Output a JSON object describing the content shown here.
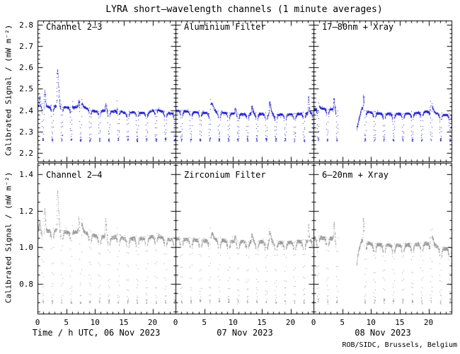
{
  "title": "LYRA short–wavelength channels (1 minute averages)",
  "credit": "ROB/SIDC, Brussels, Belgium",
  "chart_data": {
    "type": "scatter",
    "title": "LYRA short–wavelength channels (1 minute averages)",
    "credit": "ROB/SIDC, Brussels, Belgium",
    "grid": false,
    "orbit_period_h": 1.6389,
    "x_axis": {
      "hours_per_panel": 24,
      "tick_hours": [
        0,
        5,
        10,
        15,
        20
      ],
      "tick_labels": [
        "0",
        "5",
        "10",
        "15",
        "20"
      ],
      "minor_step_h": 1,
      "date_axis_labels": [
        "Time / h UTC, 06 Nov 2023",
        "07 Nov 2023",
        "08 Nov 2023"
      ],
      "dates": [
        "06 Nov 2023",
        "07 Nov 2023",
        "08 Nov 2023"
      ]
    },
    "rows": [
      {
        "ylabel": "Calibrated Signal / (mW m⁻²)",
        "color": "#2222cc",
        "ylim": [
          2.16,
          2.82
        ],
        "yticks": [
          2.2,
          2.3,
          2.4,
          2.5,
          2.6,
          2.7,
          2.8
        ],
        "ytick_labels": [
          "2.2",
          "2.3",
          "2.4",
          "2.5",
          "2.6",
          "2.7",
          "2.8"
        ],
        "y_minor_step": 0.02,
        "band_noise": 0.0045,
        "dip": {
          "floor": 2.256,
          "notch": 0.02,
          "dwell": 0.012,
          "scatter": 0.009
        },
        "panels": [
          {
            "label": "Channel 2–3",
            "dip_phase": 0.9,
            "gaps": [],
            "baseline": [
              [
                0,
                2.42
              ],
              [
                1,
                2.425
              ],
              [
                2,
                2.415
              ],
              [
                3,
                2.42
              ],
              [
                4,
                2.42
              ],
              [
                5,
                2.415
              ],
              [
                6,
                2.41
              ],
              [
                7,
                2.42
              ],
              [
                8,
                2.415
              ],
              [
                9,
                2.405
              ],
              [
                10,
                2.395
              ],
              [
                11,
                2.4
              ],
              [
                12,
                2.4
              ],
              [
                13,
                2.395
              ],
              [
                14,
                2.4
              ],
              [
                15,
                2.39
              ],
              [
                16,
                2.39
              ],
              [
                17,
                2.392
              ],
              [
                18,
                2.388
              ],
              [
                19,
                2.39
              ],
              [
                20,
                2.4
              ],
              [
                21,
                2.4
              ],
              [
                22,
                2.392
              ],
              [
                23,
                2.387
              ],
              [
                24,
                2.385
              ]
            ],
            "spikes": [
              [
                0.35,
                2.465,
                0.08
              ],
              [
                1.2,
                2.5,
                0.12
              ],
              [
                3.4,
                2.59,
                0.2
              ],
              [
                5.8,
                2.465,
                0.18
              ],
              [
                7.15,
                2.455,
                0.1
              ],
              [
                7.6,
                2.45,
                0.18
              ],
              [
                9.0,
                2.42,
                0.1
              ],
              [
                11.8,
                2.43,
                0.12
              ],
              [
                13.9,
                2.462,
                0.1
              ],
              [
                20.6,
                2.415,
                0.25
              ]
            ]
          },
          {
            "label": "Aluminium Filter",
            "dip_phase": 1.0,
            "gaps": [],
            "baseline": [
              [
                0,
                2.4
              ],
              [
                2,
                2.395
              ],
              [
                4,
                2.39
              ],
              [
                6,
                2.388
              ],
              [
                8,
                2.39
              ],
              [
                10,
                2.385
              ],
              [
                12,
                2.383
              ],
              [
                14,
                2.385
              ],
              [
                16,
                2.382
              ],
              [
                18,
                2.38
              ],
              [
                20,
                2.382
              ],
              [
                22,
                2.385
              ],
              [
                24,
                2.39
              ]
            ],
            "spikes": [
              [
                5.9,
                2.452,
                0.5
              ],
              [
                10.3,
                2.41,
                0.15
              ],
              [
                13.2,
                2.42,
                0.18
              ],
              [
                16.3,
                2.44,
                0.22
              ],
              [
                23.1,
                2.465,
                0.09
              ]
            ]
          },
          {
            "label": "17–80nm + Xray",
            "dip_phase": 0.75,
            "gaps": [
              [
                4.2,
                7.4
              ]
            ],
            "baseline": [
              [
                0,
                2.405
              ],
              [
                1,
                2.41
              ],
              [
                2,
                2.408
              ],
              [
                3,
                2.405
              ],
              [
                4.2,
                2.405
              ],
              [
                7.4,
                2.325
              ],
              [
                7.9,
                2.36
              ],
              [
                8.3,
                2.41
              ],
              [
                9,
                2.4
              ],
              [
                10,
                2.39
              ],
              [
                12,
                2.385
              ],
              [
                14,
                2.383
              ],
              [
                16,
                2.385
              ],
              [
                18,
                2.388
              ],
              [
                19.5,
                2.395
              ],
              [
                21,
                2.388
              ],
              [
                22,
                2.382
              ],
              [
                23,
                2.378
              ],
              [
                24,
                2.378
              ]
            ],
            "spikes": [
              [
                0.9,
                2.437,
                0.15
              ],
              [
                3.5,
                2.452,
                0.12
              ],
              [
                8.65,
                2.477,
                0.15
              ],
              [
                20.3,
                2.465,
                0.3
              ]
            ]
          }
        ]
      },
      {
        "ylabel": "Calibrated Signal / (mW m⁻²)",
        "color": "#9b9b9b",
        "ylim": [
          0.64,
          1.46
        ],
        "yticks": [
          0.8,
          1.0,
          1.2,
          1.4
        ],
        "ytick_labels": [
          "0.8",
          "1.0",
          "1.2",
          "1.4"
        ],
        "y_minor_step": 0.05,
        "band_noise": 0.009,
        "dip": {
          "floor": 0.697,
          "notch": 0.04,
          "dwell": 0.02,
          "scatter": 0.016
        },
        "panels": [
          {
            "label": "Channel 2–4",
            "dip_phase": 0.9,
            "gaps": [],
            "baseline": [
              [
                0,
                1.1
              ],
              [
                1,
                1.095
              ],
              [
                2,
                1.09
              ],
              [
                3,
                1.095
              ],
              [
                4,
                1.09
              ],
              [
                5,
                1.085
              ],
              [
                6,
                1.08
              ],
              [
                7,
                1.09
              ],
              [
                8,
                1.085
              ],
              [
                9,
                1.075
              ],
              [
                10,
                1.065
              ],
              [
                11,
                1.06
              ],
              [
                12,
                1.06
              ],
              [
                13,
                1.055
              ],
              [
                14,
                1.06
              ],
              [
                15,
                1.05
              ],
              [
                16,
                1.048
              ],
              [
                17,
                1.052
              ],
              [
                18,
                1.05
              ],
              [
                19,
                1.055
              ],
              [
                20,
                1.06
              ],
              [
                21,
                1.06
              ],
              [
                22,
                1.052
              ],
              [
                23,
                1.045
              ],
              [
                24,
                1.042
              ]
            ],
            "spikes": [
              [
                0.35,
                1.14,
                0.08
              ],
              [
                1.2,
                1.225,
                0.12
              ],
              [
                3.4,
                1.305,
                0.2
              ],
              [
                5.8,
                1.155,
                0.18
              ],
              [
                7.15,
                1.175,
                0.1
              ],
              [
                7.6,
                1.165,
                0.18
              ],
              [
                9.0,
                1.1,
                0.1
              ],
              [
                11.8,
                1.15,
                0.12
              ],
              [
                13.9,
                1.165,
                0.1
              ],
              [
                20.6,
                1.08,
                0.25
              ]
            ]
          },
          {
            "label": "Zirconium Filter",
            "dip_phase": 1.0,
            "gaps": [],
            "baseline": [
              [
                0,
                1.05
              ],
              [
                2,
                1.045
              ],
              [
                4,
                1.04
              ],
              [
                6,
                1.038
              ],
              [
                8,
                1.04
              ],
              [
                10,
                1.035
              ],
              [
                12,
                1.032
              ],
              [
                14,
                1.034
              ],
              [
                16,
                1.03
              ],
              [
                18,
                1.028
              ],
              [
                20,
                1.03
              ],
              [
                22,
                1.033
              ],
              [
                24,
                1.04
              ]
            ],
            "spikes": [
              [
                5.9,
                1.1,
                0.5
              ],
              [
                10.3,
                1.06,
                0.15
              ],
              [
                13.2,
                1.07,
                0.18
              ],
              [
                16.3,
                1.092,
                0.22
              ],
              [
                23.1,
                1.125,
                0.09
              ]
            ]
          },
          {
            "label": "6–20nm + Xray",
            "dip_phase": 0.75,
            "gaps": [
              [
                4.2,
                7.4
              ]
            ],
            "baseline": [
              [
                0,
                1.05
              ],
              [
                1,
                1.055
              ],
              [
                2,
                1.052
              ],
              [
                3,
                1.05
              ],
              [
                4.2,
                1.05
              ],
              [
                7.4,
                0.94
              ],
              [
                7.9,
                0.99
              ],
              [
                8.3,
                1.04
              ],
              [
                9,
                1.03
              ],
              [
                10,
                1.02
              ],
              [
                12,
                1.015
              ],
              [
                14,
                1.012
              ],
              [
                16,
                1.015
              ],
              [
                18,
                1.018
              ],
              [
                19.5,
                1.025
              ],
              [
                21,
                1.01
              ],
              [
                22,
                1.0
              ],
              [
                23,
                0.995
              ],
              [
                24,
                0.998
              ]
            ],
            "spikes": [
              [
                0.9,
                1.078,
                0.15
              ],
              [
                3.5,
                1.132,
                0.12
              ],
              [
                8.65,
                1.17,
                0.15
              ],
              [
                20.3,
                1.148,
                0.3
              ]
            ]
          }
        ]
      }
    ]
  }
}
